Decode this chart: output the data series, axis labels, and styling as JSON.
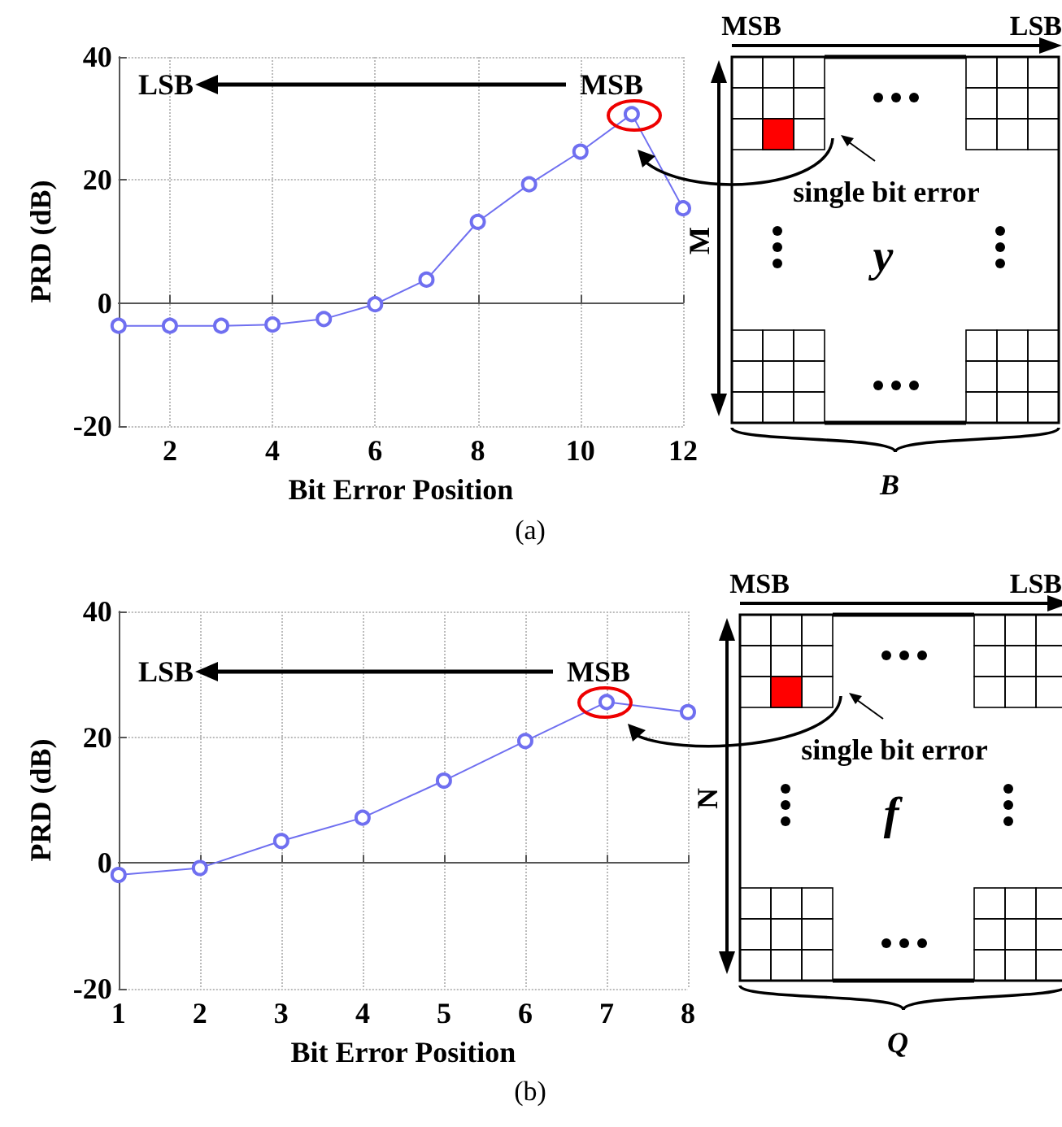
{
  "chart_data": [
    {
      "type": "line",
      "xlabel": "Bit Error Position",
      "ylabel": "PRD (dB)",
      "x": [
        1,
        2,
        3,
        4,
        5,
        6,
        7,
        8,
        9,
        10,
        11,
        12
      ],
      "series": [
        {
          "color": "#6f6ff0",
          "values": [
            -3.7,
            -3.7,
            -3.7,
            -3.5,
            -2.6,
            -0.2,
            3.8,
            13.2,
            19.3,
            24.6,
            30.7,
            15.4
          ]
        }
      ],
      "xlim": [
        1,
        12
      ],
      "xticks": [
        2,
        4,
        6,
        8,
        10,
        12
      ],
      "ylim": [
        -20,
        40
      ],
      "yticks": [
        -20,
        0,
        20,
        40
      ],
      "grid": true,
      "marker": "circle",
      "line_style": "solid",
      "annotations": [
        "LSB",
        "MSB",
        "MSB",
        "LSB",
        "single bit error",
        "M",
        "y",
        "B",
        "(a)"
      ]
    },
    {
      "type": "line",
      "xlabel": "Bit Error Position",
      "ylabel": "PRD (dB)",
      "x": [
        1,
        2,
        3,
        4,
        5,
        6,
        7,
        8
      ],
      "series": [
        {
          "color": "#6f6ff0",
          "values": [
            -1.9,
            -0.8,
            3.5,
            7.2,
            13.1,
            19.4,
            25.6,
            24
          ]
        }
      ],
      "xlim": [
        1,
        8
      ],
      "xticks": [
        1,
        2,
        3,
        4,
        5,
        6,
        7,
        8
      ],
      "ylim": [
        -20,
        40
      ],
      "yticks": [
        -20,
        0,
        20,
        40
      ],
      "grid": true,
      "marker": "circle",
      "line_style": "solid",
      "annotations": [
        "LSB",
        "MSB",
        "MSB",
        "LSB",
        "single bit error",
        "N",
        "f",
        "Q",
        "(b)"
      ]
    }
  ]
}
